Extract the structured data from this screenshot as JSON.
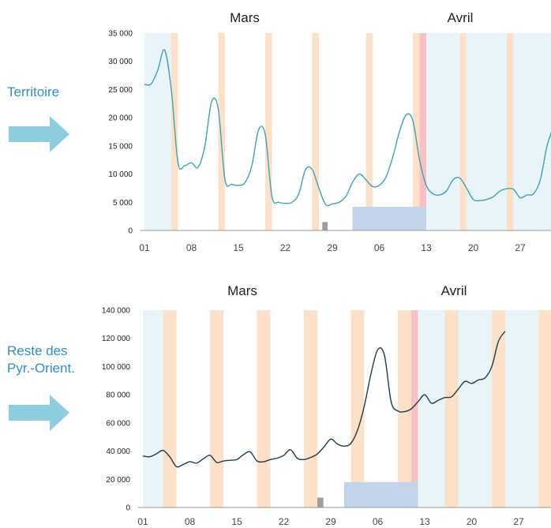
{
  "colors": {
    "weekend_band": "#fde0c8",
    "light_bg": "#e9f4f8",
    "pink_band": "#f9c0c4",
    "blue_box": "#c3d4ea",
    "grey_marker": "#9e9e9e",
    "arrow": "#8ecde0",
    "side_text": "#2e8fc7",
    "series_top": "#3aa3b8",
    "series_bottom": "#1c3e4a"
  },
  "chart_data": [
    {
      "type": "line",
      "side_label": [
        "Territoire"
      ],
      "month_labels": [
        "Mars",
        "Avril"
      ],
      "x_tick_labels": [
        "01",
        "08",
        "15",
        "22",
        "29",
        "06",
        "13",
        "20",
        "27"
      ],
      "y_ticks": [
        0,
        5000,
        10000,
        15000,
        20000,
        25000,
        30000,
        35000
      ],
      "y_tick_labels": [
        "0",
        "5 000",
        "10 000",
        "15 000",
        "20 000",
        "25 000",
        "30 000",
        "35 000"
      ],
      "ylim": [
        0,
        35000
      ],
      "days_per_tick": 7,
      "weekend_days": [
        [
          4,
          5
        ],
        [
          11,
          12
        ],
        [
          18,
          19
        ],
        [
          25,
          26
        ],
        [
          33,
          34
        ],
        [
          40,
          41
        ],
        [
          47,
          48
        ],
        [
          54,
          55
        ],
        [
          61,
          62
        ]
      ],
      "light_bg_ranges": [
        [
          0,
          4
        ],
        [
          42,
          61
        ]
      ],
      "pink_band": [
        41,
        42
      ],
      "blue_box": {
        "x": [
          31,
          42
        ],
        "y": [
          0,
          4200
        ]
      },
      "grey_marker": {
        "x": [
          26.5,
          27.3
        ],
        "y": [
          0,
          1500
        ]
      },
      "series": [
        {
          "color": "#3aa3b8",
          "points": [
            [
              0,
              25900
            ],
            [
              1,
              26000
            ],
            [
              2,
              28500
            ],
            [
              3,
              32000
            ],
            [
              4,
              25000
            ],
            [
              5,
              12000
            ],
            [
              6,
              11500
            ],
            [
              7,
              12000
            ],
            [
              8,
              11200
            ],
            [
              9,
              15000
            ],
            [
              10,
              22800
            ],
            [
              11,
              21500
            ],
            [
              12,
              9000
            ],
            [
              13,
              8200
            ],
            [
              14,
              8000
            ],
            [
              15,
              8500
            ],
            [
              16,
              11500
            ],
            [
              17,
              17800
            ],
            [
              18,
              17000
            ],
            [
              19,
              6000
            ],
            [
              20,
              5000
            ],
            [
              21,
              4800
            ],
            [
              22,
              5000
            ],
            [
              23,
              6500
            ],
            [
              24,
              10800
            ],
            [
              25,
              10800
            ],
            [
              26,
              7500
            ],
            [
              27,
              4600
            ],
            [
              28,
              4700
            ],
            [
              29,
              5000
            ],
            [
              30,
              6000
            ],
            [
              31,
              8500
            ],
            [
              32,
              10000
            ],
            [
              33,
              9000
            ],
            [
              34,
              7800
            ],
            [
              35,
              8000
            ],
            [
              36,
              9500
            ],
            [
              37,
              13000
            ],
            [
              38,
              17500
            ],
            [
              39,
              20500
            ],
            [
              40,
              19500
            ],
            [
              41,
              12500
            ],
            [
              42,
              8000
            ],
            [
              43,
              6500
            ],
            [
              44,
              6300
            ],
            [
              45,
              7000
            ],
            [
              46,
              9000
            ],
            [
              47,
              9300
            ],
            [
              48,
              7500
            ],
            [
              49,
              5500
            ],
            [
              50,
              5300
            ],
            [
              51,
              5500
            ],
            [
              52,
              6000
            ],
            [
              53,
              7000
            ],
            [
              54,
              7400
            ],
            [
              55,
              7300
            ],
            [
              56,
              5800
            ],
            [
              57,
              6300
            ],
            [
              58,
              6500
            ],
            [
              59,
              9000
            ],
            [
              60,
              15000
            ],
            [
              61,
              18500
            ]
          ]
        }
      ]
    },
    {
      "type": "line",
      "side_label": [
        "Reste des",
        "Pyr.-Orient."
      ],
      "month_labels": [
        "Mars",
        "Avril"
      ],
      "x_tick_labels": [
        "01",
        "08",
        "15",
        "22",
        "29",
        "06",
        "13",
        "20",
        "27"
      ],
      "y_ticks": [
        0,
        20000,
        40000,
        60000,
        80000,
        100000,
        120000,
        140000
      ],
      "y_tick_labels": [
        "0",
        "20 000",
        "40 000",
        "60 000",
        "80 000",
        "100 000",
        "120 000",
        "140 000"
      ],
      "ylim": [
        0,
        140000
      ],
      "days_per_tick": 7,
      "weekend_days": [
        [
          3,
          5
        ],
        [
          10,
          12
        ],
        [
          17,
          19
        ],
        [
          24,
          26
        ],
        [
          31,
          33
        ],
        [
          38,
          40
        ],
        [
          45,
          47
        ],
        [
          52,
          54
        ],
        [
          59,
          61
        ]
      ],
      "light_bg_ranges": [
        [
          0,
          3
        ],
        [
          41,
          59
        ]
      ],
      "pink_band": [
        40,
        41
      ],
      "blue_box": {
        "x": [
          30,
          41
        ],
        "y": [
          0,
          18000
        ]
      },
      "grey_marker": {
        "x": [
          26,
          26.9
        ],
        "y": [
          0,
          7000
        ]
      },
      "series": [
        {
          "color": "#1c3e4a",
          "points": [
            [
              0,
              36500
            ],
            [
              1,
              36000
            ],
            [
              2,
              38000
            ],
            [
              3,
              40500
            ],
            [
              4,
              36000
            ],
            [
              5,
              29000
            ],
            [
              6,
              30500
            ],
            [
              7,
              32500
            ],
            [
              8,
              31500
            ],
            [
              9,
              34500
            ],
            [
              10,
              37000
            ],
            [
              11,
              32000
            ],
            [
              12,
              33000
            ],
            [
              13,
              33500
            ],
            [
              14,
              34000
            ],
            [
              15,
              37500
            ],
            [
              16,
              39500
            ],
            [
              17,
              33000
            ],
            [
              18,
              32500
            ],
            [
              19,
              34000
            ],
            [
              20,
              35000
            ],
            [
              21,
              37000
            ],
            [
              22,
              41000
            ],
            [
              23,
              35000
            ],
            [
              24,
              34000
            ],
            [
              25,
              35500
            ],
            [
              26,
              38000
            ],
            [
              27,
              43000
            ],
            [
              28,
              48500
            ],
            [
              29,
              45000
            ],
            [
              30,
              43500
            ],
            [
              31,
              45500
            ],
            [
              32,
              55000
            ],
            [
              33,
              72000
            ],
            [
              34,
              95000
            ],
            [
              35,
              112000
            ],
            [
              36,
              108000
            ],
            [
              37,
              75000
            ],
            [
              38,
              68500
            ],
            [
              39,
              68000
            ],
            [
              40,
              70000
            ],
            [
              41,
              75000
            ],
            [
              42,
              80000
            ],
            [
              43,
              74000
            ],
            [
              44,
              76000
            ],
            [
              45,
              78000
            ],
            [
              46,
              78500
            ],
            [
              47,
              84000
            ],
            [
              48,
              89500
            ],
            [
              49,
              88000
            ],
            [
              50,
              90500
            ],
            [
              51,
              92000
            ],
            [
              52,
              100000
            ],
            [
              53,
              118000
            ],
            [
              54,
              125000
            ]
          ]
        }
      ]
    }
  ]
}
